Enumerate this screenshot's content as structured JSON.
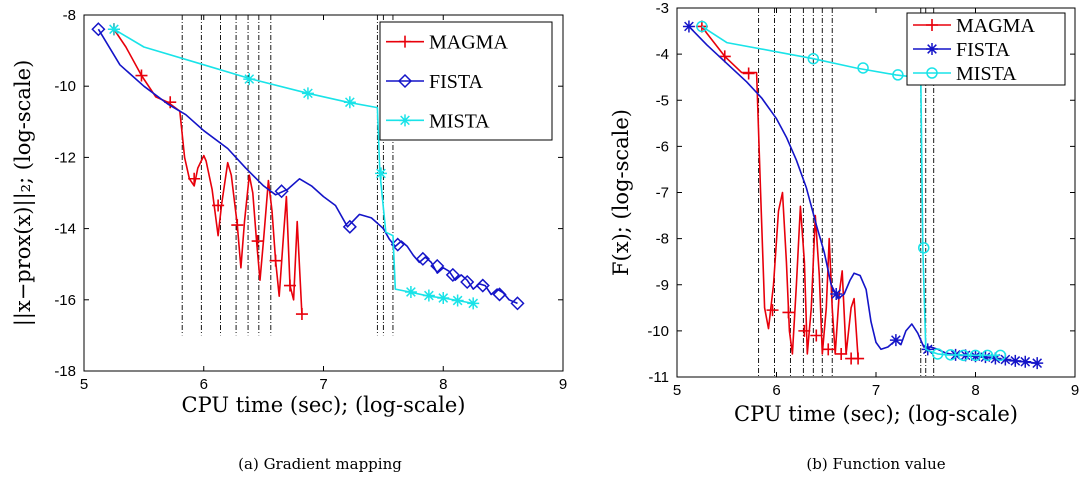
{
  "chart_data": [
    {
      "type": "line",
      "caption": "(a) Gradient mapping",
      "xlabel": "CPU time (sec); (log-scale)",
      "ylabel": "||x−prox(x)||₂; (log-scale)",
      "xlim": [
        5,
        9
      ],
      "ylim": [
        -18,
        -8
      ],
      "xticks": [
        5,
        6,
        7,
        8,
        9
      ],
      "yticks": [
        -8,
        -10,
        -12,
        -14,
        -16,
        -18
      ],
      "legend_position": "top-right",
      "vlines": [
        5.82,
        5.98,
        6.14,
        6.27,
        6.37,
        6.46,
        6.56,
        7.45,
        7.5,
        7.58
      ],
      "vline_range": [
        -17,
        -8
      ],
      "series": [
        {
          "name": "MAGMA",
          "color": "#e8000b",
          "marker": "plus",
          "points": [
            [
              5.25,
              -8.4
            ],
            [
              5.35,
              -8.9
            ],
            [
              5.48,
              -9.7
            ],
            [
              5.6,
              -10.3
            ],
            [
              5.7,
              -10.45
            ],
            [
              5.8,
              -10.7
            ],
            [
              5.84,
              -12.0
            ],
            [
              5.88,
              -12.6
            ],
            [
              5.92,
              -12.8
            ],
            [
              5.95,
              -12.3
            ],
            [
              6.0,
              -11.95
            ],
            [
              6.02,
              -12.1
            ],
            [
              6.07,
              -12.9
            ],
            [
              6.12,
              -14.2
            ],
            [
              6.15,
              -13.3
            ],
            [
              6.2,
              -12.15
            ],
            [
              6.23,
              -12.5
            ],
            [
              6.28,
              -13.9
            ],
            [
              6.31,
              -15.1
            ],
            [
              6.34,
              -13.8
            ],
            [
              6.38,
              -12.5
            ],
            [
              6.41,
              -13.0
            ],
            [
              6.44,
              -14.3
            ],
            [
              6.47,
              -15.45
            ],
            [
              6.5,
              -14.3
            ],
            [
              6.54,
              -12.65
            ],
            [
              6.57,
              -13.5
            ],
            [
              6.6,
              -14.9
            ],
            [
              6.63,
              -15.9
            ],
            [
              6.67,
              -14.0
            ],
            [
              6.69,
              -13.1
            ],
            [
              6.72,
              -15.6
            ],
            [
              6.75,
              -16.0
            ],
            [
              6.78,
              -13.8
            ],
            [
              6.82,
              -16.4
            ]
          ],
          "markers": [
            [
              5.25,
              -8.4
            ],
            [
              5.48,
              -9.7
            ],
            [
              5.72,
              -10.45
            ],
            [
              5.92,
              -12.6
            ],
            [
              6.12,
              -13.35
            ],
            [
              6.28,
              -13.9
            ],
            [
              6.45,
              -14.35
            ],
            [
              6.6,
              -14.9
            ],
            [
              6.72,
              -15.6
            ],
            [
              6.82,
              -16.4
            ]
          ]
        },
        {
          "name": "FISTA",
          "color": "#1414c8",
          "marker": "diamond",
          "points": [
            [
              5.12,
              -8.4
            ],
            [
              5.3,
              -9.4
            ],
            [
              5.5,
              -10.0
            ],
            [
              5.7,
              -10.5
            ],
            [
              5.85,
              -10.8
            ],
            [
              6.0,
              -11.25
            ],
            [
              6.2,
              -11.75
            ],
            [
              6.35,
              -12.3
            ],
            [
              6.5,
              -12.8
            ],
            [
              6.6,
              -13.05
            ],
            [
              6.7,
              -12.9
            ],
            [
              6.8,
              -12.6
            ],
            [
              6.9,
              -12.8
            ],
            [
              7.0,
              -13.1
            ],
            [
              7.1,
              -13.35
            ],
            [
              7.2,
              -13.95
            ],
            [
              7.3,
              -13.6
            ],
            [
              7.4,
              -13.7
            ],
            [
              7.5,
              -14.0
            ],
            [
              7.55,
              -14.3
            ],
            [
              7.6,
              -14.5
            ],
            [
              7.65,
              -14.35
            ],
            [
              7.7,
              -14.5
            ],
            [
              7.75,
              -14.75
            ],
            [
              7.8,
              -14.95
            ],
            [
              7.85,
              -14.8
            ],
            [
              7.9,
              -14.95
            ],
            [
              7.95,
              -15.25
            ],
            [
              8.0,
              -15.1
            ],
            [
              8.05,
              -15.2
            ],
            [
              8.1,
              -15.45
            ],
            [
              8.15,
              -15.3
            ],
            [
              8.2,
              -15.45
            ],
            [
              8.25,
              -15.7
            ],
            [
              8.3,
              -15.55
            ],
            [
              8.35,
              -15.6
            ],
            [
              8.4,
              -15.85
            ],
            [
              8.45,
              -15.7
            ],
            [
              8.5,
              -15.8
            ],
            [
              8.55,
              -16.0
            ],
            [
              8.62,
              -16.1
            ]
          ],
          "markers": [
            [
              5.12,
              -8.4
            ],
            [
              6.65,
              -12.95
            ],
            [
              7.22,
              -13.95
            ],
            [
              7.62,
              -14.45
            ],
            [
              7.83,
              -14.85
            ],
            [
              7.95,
              -15.05
            ],
            [
              8.08,
              -15.3
            ],
            [
              8.2,
              -15.5
            ],
            [
              8.33,
              -15.6
            ],
            [
              8.47,
              -15.85
            ],
            [
              8.62,
              -16.1
            ]
          ]
        },
        {
          "name": "MISTA",
          "color": "#19e3e8",
          "marker": "asterisk",
          "points": [
            [
              5.25,
              -8.4
            ],
            [
              5.5,
              -8.9
            ],
            [
              6.0,
              -9.4
            ],
            [
              6.4,
              -9.8
            ],
            [
              6.87,
              -10.2
            ],
            [
              7.2,
              -10.45
            ],
            [
              7.45,
              -10.6
            ],
            [
              7.47,
              -12.4
            ],
            [
              7.52,
              -14.1
            ],
            [
              7.58,
              -14.2
            ],
            [
              7.6,
              -15.7
            ],
            [
              7.72,
              -15.78
            ],
            [
              7.88,
              -15.9
            ],
            [
              8.0,
              -15.95
            ],
            [
              8.12,
              -16.02
            ],
            [
              8.25,
              -16.1
            ]
          ],
          "markers": [
            [
              5.25,
              -8.4
            ],
            [
              6.38,
              -9.8
            ],
            [
              6.87,
              -10.2
            ],
            [
              7.22,
              -10.45
            ],
            [
              7.48,
              -12.45
            ],
            [
              7.73,
              -15.78
            ],
            [
              7.88,
              -15.88
            ],
            [
              8.0,
              -15.95
            ],
            [
              8.12,
              -16.02
            ],
            [
              8.25,
              -16.1
            ]
          ]
        }
      ]
    },
    {
      "type": "line",
      "caption": "(b) Function value",
      "xlabel": "CPU time (sec); (log-scale)",
      "ylabel": "F(x); (log-scale)",
      "xlim": [
        5,
        9
      ],
      "ylim": [
        -11,
        -3
      ],
      "xticks": [
        5,
        6,
        7,
        8,
        9
      ],
      "yticks": [
        -3,
        -4,
        -5,
        -6,
        -7,
        -8,
        -9,
        -10,
        -11
      ],
      "legend_position": "top-right",
      "vlines": [
        5.82,
        5.98,
        6.14,
        6.27,
        6.37,
        6.46,
        6.56,
        7.45,
        7.5,
        7.58
      ],
      "vline_range": [
        -11,
        -3
      ],
      "series": [
        {
          "name": "MAGMA",
          "color": "#e8000b",
          "marker": "plus",
          "points": [
            [
              5.25,
              -3.4
            ],
            [
              5.3,
              -3.55
            ],
            [
              5.48,
              -4.05
            ],
            [
              5.65,
              -4.4
            ],
            [
              5.8,
              -4.4
            ],
            [
              5.84,
              -7.0
            ],
            [
              5.88,
              -9.5
            ],
            [
              5.92,
              -9.95
            ],
            [
              5.97,
              -9.0
            ],
            [
              6.02,
              -7.4
            ],
            [
              6.06,
              -7.0
            ],
            [
              6.1,
              -8.5
            ],
            [
              6.13,
              -10.0
            ],
            [
              6.16,
              -10.5
            ],
            [
              6.2,
              -9.0
            ],
            [
              6.24,
              -7.3
            ],
            [
              6.28,
              -8.5
            ],
            [
              6.31,
              -10.5
            ],
            [
              6.35,
              -9.5
            ],
            [
              6.39,
              -7.5
            ],
            [
              6.43,
              -8.8
            ],
            [
              6.46,
              -10.5
            ],
            [
              6.5,
              -9.5
            ],
            [
              6.53,
              -8.0
            ],
            [
              6.56,
              -9.5
            ],
            [
              6.59,
              -10.5
            ],
            [
              6.63,
              -9.2
            ],
            [
              6.66,
              -8.7
            ],
            [
              6.7,
              -10.5
            ],
            [
              6.75,
              -9.5
            ],
            [
              6.78,
              -9.3
            ],
            [
              6.82,
              -10.6
            ]
          ],
          "markers": [
            [
              5.25,
              -3.4
            ],
            [
              5.48,
              -4.05
            ],
            [
              5.72,
              -4.42
            ],
            [
              5.96,
              -9.55
            ],
            [
              6.12,
              -9.6
            ],
            [
              6.28,
              -10.0
            ],
            [
              6.4,
              -10.1
            ],
            [
              6.52,
              -10.4
            ],
            [
              6.65,
              -10.5
            ],
            [
              6.75,
              -10.6
            ],
            [
              6.82,
              -10.6
            ]
          ]
        },
        {
          "name": "FISTA",
          "color": "#1414c8",
          "marker": "asterisk",
          "points": [
            [
              5.12,
              -3.4
            ],
            [
              5.3,
              -3.8
            ],
            [
              5.5,
              -4.2
            ],
            [
              5.7,
              -4.6
            ],
            [
              5.85,
              -4.95
            ],
            [
              6.0,
              -5.4
            ],
            [
              6.1,
              -5.8
            ],
            [
              6.2,
              -6.3
            ],
            [
              6.3,
              -6.9
            ],
            [
              6.4,
              -7.7
            ],
            [
              6.48,
              -8.3
            ],
            [
              6.55,
              -9.0
            ],
            [
              6.62,
              -9.3
            ],
            [
              6.68,
              -9.2
            ],
            [
              6.74,
              -8.9
            ],
            [
              6.78,
              -8.75
            ],
            [
              6.84,
              -8.8
            ],
            [
              6.9,
              -9.1
            ],
            [
              6.95,
              -9.8
            ],
            [
              7.0,
              -10.25
            ],
            [
              7.05,
              -10.4
            ],
            [
              7.12,
              -10.35
            ],
            [
              7.2,
              -10.2
            ],
            [
              7.25,
              -10.3
            ],
            [
              7.3,
              -10.0
            ],
            [
              7.36,
              -9.85
            ],
            [
              7.42,
              -10.05
            ],
            [
              7.48,
              -10.35
            ],
            [
              7.55,
              -10.35
            ],
            [
              7.62,
              -10.4
            ],
            [
              7.7,
              -10.48
            ],
            [
              7.8,
              -10.52
            ],
            [
              8.0,
              -10.55
            ],
            [
              8.2,
              -10.6
            ],
            [
              8.4,
              -10.65
            ],
            [
              8.62,
              -10.7
            ]
          ],
          "markers": [
            [
              5.12,
              -3.4
            ],
            [
              6.6,
              -9.2
            ],
            [
              7.2,
              -10.2
            ],
            [
              7.52,
              -10.4
            ],
            [
              7.8,
              -10.52
            ],
            [
              7.9,
              -10.53
            ],
            [
              8.0,
              -10.55
            ],
            [
              8.1,
              -10.57
            ],
            [
              8.2,
              -10.6
            ],
            [
              8.3,
              -10.62
            ],
            [
              8.4,
              -10.65
            ],
            [
              8.5,
              -10.67
            ],
            [
              8.62,
              -10.7
            ]
          ]
        },
        {
          "name": "MISTA",
          "color": "#19e3e8",
          "marker": "circle",
          "points": [
            [
              5.25,
              -3.4
            ],
            [
              5.5,
              -3.75
            ],
            [
              6.0,
              -3.95
            ],
            [
              6.37,
              -4.1
            ],
            [
              6.8,
              -4.3
            ],
            [
              7.2,
              -4.45
            ],
            [
              7.4,
              -4.5
            ],
            [
              7.45,
              -4.5
            ],
            [
              7.47,
              -8.2
            ],
            [
              7.5,
              -10.4
            ],
            [
              7.55,
              -10.45
            ],
            [
              7.62,
              -10.5
            ],
            [
              7.72,
              -10.52
            ],
            [
              7.85,
              -10.52
            ],
            [
              8.0,
              -10.53
            ],
            [
              8.12,
              -10.53
            ],
            [
              8.25,
              -10.53
            ]
          ],
          "markers": [
            [
              5.25,
              -3.4
            ],
            [
              6.37,
              -4.1
            ],
            [
              6.87,
              -4.3
            ],
            [
              7.22,
              -4.45
            ],
            [
              7.48,
              -8.2
            ],
            [
              7.62,
              -10.5
            ],
            [
              7.75,
              -10.52
            ],
            [
              7.88,
              -10.53
            ],
            [
              8.0,
              -10.53
            ],
            [
              8.12,
              -10.53
            ],
            [
              8.25,
              -10.53
            ]
          ]
        }
      ]
    }
  ]
}
